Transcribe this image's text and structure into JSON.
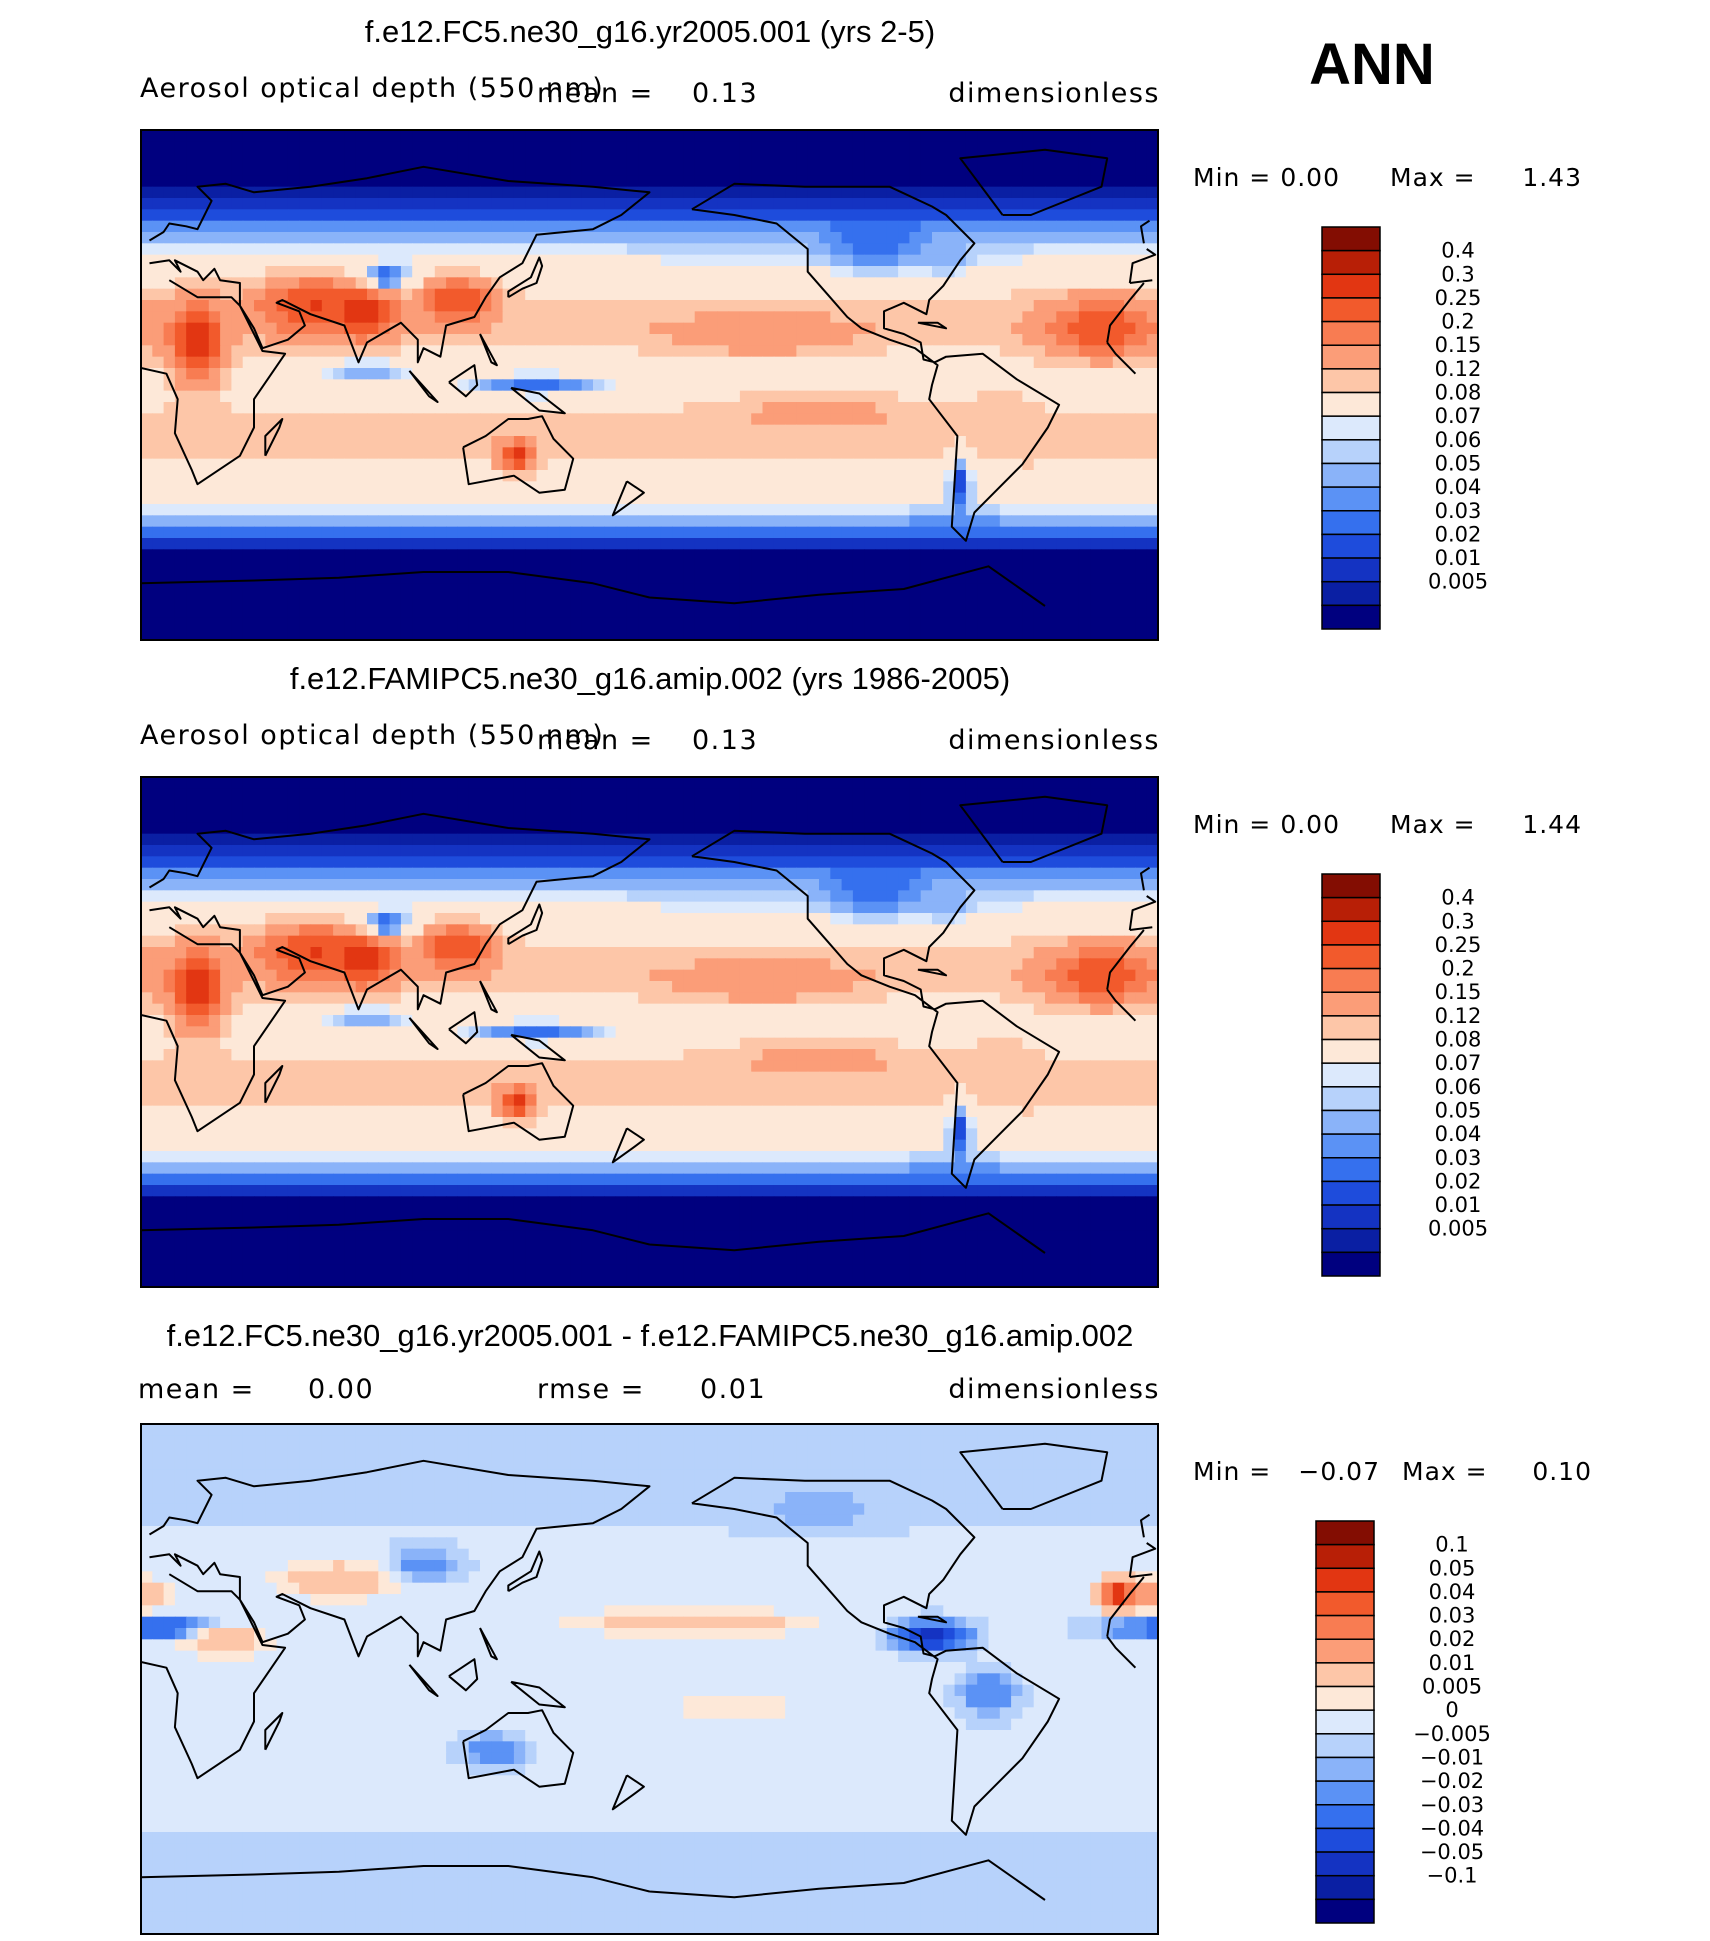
{
  "season": "ANN",
  "colors": {
    "abs_levels": [
      "#00007f",
      "#0a1fa3",
      "#1433c2",
      "#1e4cdc",
      "#3570ee",
      "#5b92f5",
      "#8ab3f9",
      "#b7d2fb",
      "#dce9fc",
      "#fde8d8",
      "#fdc6a8",
      "#fb9d78",
      "#f87c52",
      "#f25a2c",
      "#e23612",
      "#b81f06",
      "#830d02"
    ],
    "diff_levels": [
      "#00007f",
      "#0a1fa3",
      "#1433c2",
      "#1e4cdc",
      "#3570ee",
      "#5b92f5",
      "#8ab3f9",
      "#b7d2fb",
      "#dce9fc",
      "#fde8d8",
      "#fdc6a8",
      "#fb9d78",
      "#f87c52",
      "#f25a2c",
      "#e23612",
      "#b81f06",
      "#830d02"
    ]
  },
  "chart_data": [
    {
      "type": "heatmap",
      "title": "f.e12.FC5.ne30_g16.yr2005.001 (yrs 2-5)",
      "variable": "Aerosol optical depth (550 nm)",
      "mean_label": "mean =",
      "mean": "0.13",
      "units": "dimensionless",
      "min_label": "Min =",
      "min": "0.00",
      "max_label": "Max =",
      "max": "1.43",
      "colorbar_ticks": [
        "0.4",
        "0.3",
        "0.25",
        "0.2",
        "0.15",
        "0.12",
        "0.08",
        "0.07",
        "0.06",
        "0.05",
        "0.04",
        "0.03",
        "0.02",
        "0.01",
        "0.005"
      ],
      "field": {
        "background": 0.09,
        "lat_profile": [
          [
            90,
            0.004
          ],
          [
            70,
            0.004
          ],
          [
            62,
            0.02
          ],
          [
            55,
            0.05
          ],
          [
            48,
            0.07
          ],
          [
            40,
            0.09
          ],
          [
            28,
            0.13
          ],
          [
            20,
            0.14
          ],
          [
            10,
            0.11
          ],
          [
            0,
            0.1
          ],
          [
            -10,
            0.12
          ],
          [
            -20,
            0.13
          ],
          [
            -30,
            0.11
          ],
          [
            -40,
            0.09
          ],
          [
            -48,
            0.05
          ],
          [
            -55,
            0.02
          ],
          [
            -60,
            0.004
          ],
          [
            -90,
            0.003
          ]
        ],
        "blobs": [
          [
            15,
            20,
            14,
            9,
            0.35
          ],
          [
            28,
            60,
            10,
            20,
            0.3
          ],
          [
            25,
            80,
            8,
            10,
            0.35
          ],
          [
            30,
            112,
            8,
            12,
            0.3
          ],
          [
            38,
            87,
            4,
            9,
            0.02
          ],
          [
            20,
            -20,
            10,
            20,
            0.3
          ],
          [
            18,
            -140,
            7,
            30,
            0.2
          ],
          [
            -10,
            -120,
            6,
            30,
            0.18
          ],
          [
            -25,
            133,
            5,
            6,
            0.35
          ],
          [
            -10,
            -55,
            10,
            10,
            0.14
          ],
          [
            0,
            140,
            4,
            25,
            0.03
          ],
          [
            5,
            80,
            4,
            20,
            0.05
          ],
          [
            50,
            -100,
            10,
            20,
            0.03
          ],
          [
            -35,
            -70,
            10,
            4,
            0.02
          ],
          [
            -22,
            -45,
            6,
            8,
            0.13
          ],
          [
            45,
            -75,
            6,
            10,
            0.05
          ]
        ]
      }
    },
    {
      "type": "heatmap",
      "title": "f.e12.FAMIPC5.ne30_g16.amip.002 (yrs 1986-2005)",
      "variable": "Aerosol optical depth (550 nm)",
      "mean_label": "mean =",
      "mean": "0.13",
      "units": "dimensionless",
      "min_label": "Min =",
      "min": "0.00",
      "max_label": "Max =",
      "max": "1.44",
      "colorbar_ticks": [
        "0.4",
        "0.3",
        "0.25",
        "0.2",
        "0.15",
        "0.12",
        "0.08",
        "0.07",
        "0.06",
        "0.05",
        "0.04",
        "0.03",
        "0.02",
        "0.01",
        "0.005"
      ],
      "field": {
        "background": 0.09,
        "lat_profile": [
          [
            90,
            0.004
          ],
          [
            70,
            0.004
          ],
          [
            62,
            0.02
          ],
          [
            55,
            0.05
          ],
          [
            48,
            0.07
          ],
          [
            40,
            0.09
          ],
          [
            28,
            0.13
          ],
          [
            20,
            0.14
          ],
          [
            10,
            0.11
          ],
          [
            0,
            0.1
          ],
          [
            -10,
            0.12
          ],
          [
            -20,
            0.13
          ],
          [
            -30,
            0.11
          ],
          [
            -40,
            0.09
          ],
          [
            -48,
            0.05
          ],
          [
            -55,
            0.02
          ],
          [
            -60,
            0.004
          ],
          [
            -90,
            0.003
          ]
        ],
        "blobs": [
          [
            15,
            20,
            14,
            9,
            0.35
          ],
          [
            28,
            60,
            10,
            20,
            0.3
          ],
          [
            25,
            80,
            8,
            10,
            0.35
          ],
          [
            30,
            112,
            8,
            12,
            0.3
          ],
          [
            38,
            87,
            4,
            9,
            0.02
          ],
          [
            20,
            -20,
            10,
            20,
            0.3
          ],
          [
            18,
            -140,
            7,
            30,
            0.2
          ],
          [
            -10,
            -120,
            6,
            30,
            0.18
          ],
          [
            -25,
            133,
            5,
            6,
            0.35
          ],
          [
            -10,
            -55,
            10,
            10,
            0.14
          ],
          [
            0,
            140,
            4,
            25,
            0.03
          ],
          [
            5,
            80,
            4,
            20,
            0.05
          ],
          [
            50,
            -100,
            10,
            20,
            0.03
          ],
          [
            -35,
            -70,
            10,
            4,
            0.02
          ],
          [
            -22,
            -45,
            6,
            8,
            0.13
          ],
          [
            45,
            -75,
            6,
            10,
            0.05
          ]
        ]
      }
    },
    {
      "type": "heatmap",
      "title": "f.e12.FC5.ne30_g16.yr2005.001 - f.e12.FAMIPC5.ne30_g16.amip.002",
      "mean_label": "mean =",
      "mean": "0.00",
      "rmse_label": "rmse =",
      "rmse": "0.01",
      "units": "dimensionless",
      "min_label": "Min =",
      "min": "−0.07",
      "max_label": "Max =",
      "max": "0.10",
      "colorbar_ticks": [
        "0.1",
        "0.05",
        "0.04",
        "0.03",
        "0.02",
        "0.01",
        "0.005",
        "0",
        "−0.005",
        "−0.01",
        "−0.02",
        "−0.03",
        "−0.04",
        "−0.05",
        "−0.1"
      ],
      "field": {
        "background": 0.0,
        "lat_profile": [
          [
            90,
            -0.002
          ],
          [
            0,
            0.003
          ],
          [
            -90,
            -0.002
          ]
        ],
        "blobs": [
          [
            18,
            10,
            3,
            25,
            -0.05
          ],
          [
            30,
            -5,
            5,
            12,
            0.03
          ],
          [
            15,
            30,
            6,
            15,
            0.02
          ],
          [
            35,
            70,
            6,
            20,
            0.02
          ],
          [
            15,
            -80,
            5,
            12,
            -0.05
          ],
          [
            -5,
            -60,
            8,
            10,
            -0.02
          ],
          [
            20,
            -165,
            4,
            35,
            0.02
          ],
          [
            30,
            -15,
            5,
            5,
            0.06
          ],
          [
            -25,
            125,
            5,
            10,
            -0.02
          ],
          [
            40,
            100,
            5,
            10,
            -0.02
          ],
          [
            -10,
            -150,
            5,
            20,
            0.01
          ],
          [
            60,
            -120,
            6,
            20,
            -0.01
          ]
        ]
      }
    }
  ]
}
